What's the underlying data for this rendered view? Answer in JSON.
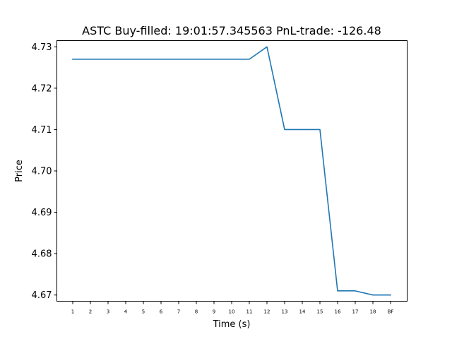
{
  "chart_data": {
    "type": "line",
    "title": "ASTC  Buy-filled:  19:01:57.345563  PnL-trade:  -126.48",
    "xlabel": "Time (s)",
    "ylabel": "Price",
    "categories": [
      "1",
      "2",
      "3",
      "4",
      "5",
      "6",
      "7",
      "8",
      "9",
      "10",
      "11",
      "12",
      "13",
      "14",
      "15",
      "16",
      "17",
      "18",
      "BF"
    ],
    "series": [
      {
        "values": [
          4.727,
          4.727,
          4.727,
          4.727,
          4.727,
          4.727,
          4.727,
          4.727,
          4.727,
          4.727,
          4.727,
          4.73,
          4.71,
          4.71,
          4.71,
          4.671,
          4.671,
          4.67,
          4.67
        ]
      }
    ],
    "yticks": [
      "4.67",
      "4.68",
      "4.69",
      "4.70",
      "4.71",
      "4.72",
      "4.73"
    ],
    "ylim": [
      4.6685,
      4.7315
    ],
    "grid": false,
    "colors": {
      "series": "#1f77b4",
      "frame": "#000000",
      "background": "#ffffff"
    }
  }
}
